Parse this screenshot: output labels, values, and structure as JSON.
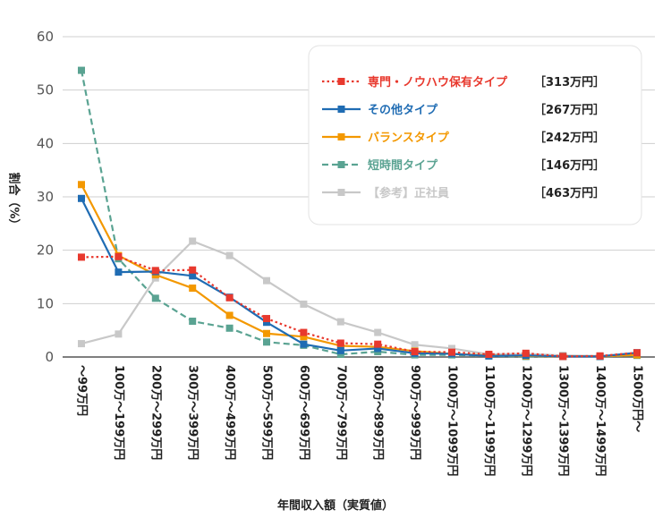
{
  "chart_data": {
    "type": "line",
    "xlabel": "年間収入額（実質値）",
    "ylabel": "割合（%）",
    "ylim": [
      0,
      60
    ],
    "yticks": [
      0,
      10,
      20,
      30,
      40,
      50,
      60
    ],
    "grid": true,
    "legend_position": "top-right",
    "categories": [
      "～99万円",
      "100万～199万円",
      "200万～299万円",
      "300万～399万円",
      "400万～499万円",
      "500万～599万円",
      "600万～699万円",
      "700万～799万円",
      "800万～899万円",
      "900万～999万円",
      "1000万～1099万円",
      "1100万～1199万円",
      "1200万～1299万円",
      "1300万～1399万円",
      "1400万～1499万円",
      "1500万円～"
    ],
    "series": [
      {
        "name": "専門・ノウハウ保有タイプ",
        "value_label": "［313万円］",
        "color": "#e8392e",
        "dash": "dotted",
        "values": [
          18.7,
          18.8,
          16.2,
          16.3,
          11.1,
          7.2,
          4.6,
          2.6,
          2.4,
          1.0,
          0.9,
          0.5,
          0.7,
          0.1,
          0.2,
          0.8
        ]
      },
      {
        "name": "その他タイプ",
        "value_label": "［267万円］",
        "color": "#1f6cb3",
        "dash": "solid",
        "values": [
          29.7,
          15.9,
          16.0,
          15.2,
          11.2,
          6.5,
          2.4,
          1.2,
          1.6,
          0.7,
          0.6,
          0.2,
          0.3,
          0.1,
          0.1,
          0.8
        ]
      },
      {
        "name": "バランスタイプ",
        "value_label": "［242万円］",
        "color": "#f39800",
        "dash": "solid",
        "values": [
          32.3,
          19.0,
          15.4,
          12.9,
          7.8,
          4.4,
          3.8,
          2.1,
          1.9,
          1.1,
          0.6,
          0.3,
          0.2,
          0.1,
          0.1,
          0.4
        ]
      },
      {
        "name": "短時間タイプ",
        "value_label": "［146万円］",
        "color": "#5aa392",
        "dash": "dashed",
        "values": [
          53.7,
          18.4,
          11.0,
          6.7,
          5.4,
          2.8,
          2.2,
          0.5,
          1.0,
          0.4,
          0.4,
          0.2,
          0.1,
          0.1,
          0.1,
          0.3
        ]
      },
      {
        "name": "【参考】正社員",
        "value_label": "［463万円］",
        "color": "#c8c8c8",
        "dash": "solid",
        "values": [
          2.5,
          4.3,
          14.8,
          21.7,
          19.0,
          14.3,
          9.9,
          6.6,
          4.6,
          2.3,
          1.6,
          0.5,
          0.6,
          0.3,
          0.2,
          0.6
        ]
      }
    ]
  }
}
